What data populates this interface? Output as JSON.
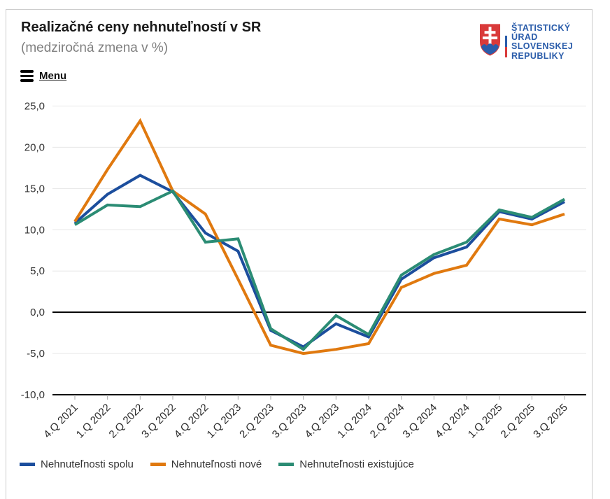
{
  "menu": {
    "label": "Menu"
  },
  "logo": {
    "lines": [
      "ŠTATISTICKÝ",
      "ÚRAD",
      "SLOVENSKEJ",
      "REPUBLIKY"
    ],
    "text_color": "#2a5caa",
    "shield_red": "#d93a3a",
    "shield_blue": "#2a5caa",
    "tricolor": [
      "#ffffff",
      "#2a5caa",
      "#d93a3a"
    ]
  },
  "chart_data": {
    "type": "line",
    "title": "Realizačné ceny nehnuteľností v SR",
    "subtitle": "(medziročná zmena v %)",
    "categories": [
      "4.Q 2021",
      "1.Q 2022",
      "2.Q 2022",
      "3.Q 2022",
      "4.Q 2022",
      "1.Q 2023",
      "2.Q 2023",
      "3.Q 2023",
      "4.Q 2023",
      "1.Q 2024",
      "2.Q 2024",
      "3.Q 2024",
      "4.Q 2024",
      "1.Q 2025",
      "2.Q 2025",
      "3.Q 2025"
    ],
    "series": [
      {
        "name": "Nehnuteľnosti spolu",
        "color": "#1c4e9d",
        "values": [
          10.8,
          14.3,
          16.6,
          14.6,
          9.6,
          7.4,
          -2.2,
          -4.2,
          -1.4,
          -3.0,
          4.0,
          6.6,
          7.9,
          12.2,
          11.3,
          13.4
        ]
      },
      {
        "name": "Nehnuteľnosti nové",
        "color": "#e0790f",
        "values": [
          11.0,
          17.3,
          23.2,
          14.7,
          11.9,
          4.0,
          -4.0,
          -5.0,
          -4.5,
          -3.8,
          3.0,
          4.7,
          5.7,
          11.3,
          10.6,
          11.9
        ]
      },
      {
        "name": "Nehnuteľnosti existujúce",
        "color": "#2b8c74",
        "values": [
          10.6,
          13.0,
          12.8,
          14.7,
          8.5,
          8.9,
          -2.0,
          -4.5,
          -0.4,
          -2.7,
          4.5,
          7.0,
          8.5,
          12.4,
          11.5,
          13.7
        ]
      }
    ],
    "ylim": [
      -10,
      25
    ],
    "y_ticks": [
      {
        "label": "25,0",
        "value": 25
      },
      {
        "label": "20,0",
        "value": 20
      },
      {
        "label": "15,0",
        "value": 15
      },
      {
        "label": "10,0",
        "value": 10
      },
      {
        "label": "5,0",
        "value": 5
      },
      {
        "label": "0,0",
        "value": 0
      },
      {
        "label": "-5,0",
        "value": -5
      },
      {
        "label": "-10,0",
        "value": -10
      }
    ],
    "grid": "horizontal",
    "zero_line": true,
    "legend_position": "bottom",
    "colors": {
      "grid": "#e6e6e6",
      "axis": "#000000",
      "tick": "#aaaaaa",
      "label": "#333333"
    }
  }
}
